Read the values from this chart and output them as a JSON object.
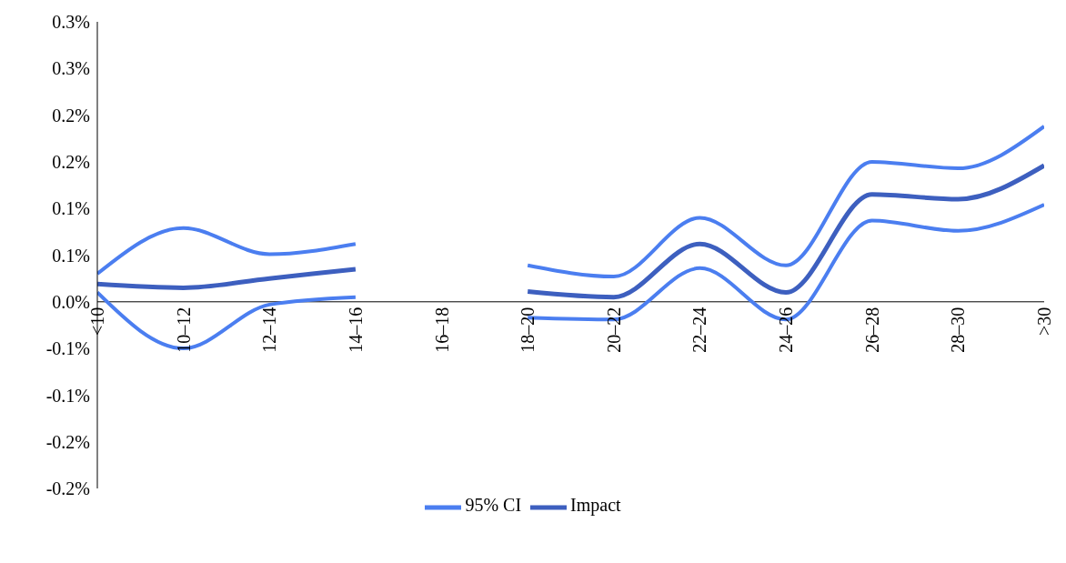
{
  "chart_data": {
    "type": "line",
    "categories": [
      "<10",
      "10–12",
      "12–14",
      "14–16",
      "16–18",
      "18–20",
      "20–22",
      "22–24",
      "24–26",
      "26–28",
      "28–30",
      ">30"
    ],
    "series": [
      {
        "name": "Impact",
        "color": "#3d5fbf",
        "values": [
          0.019,
          0.015,
          0.025,
          0.035,
          null,
          0.011,
          0.005,
          0.062,
          0.01,
          0.115,
          0.11,
          0.146
        ]
      },
      {
        "name": "95% CI",
        "color": "#4b7ef0",
        "values": [
          0.03,
          0.079,
          0.051,
          0.062,
          null,
          0.039,
          0.027,
          0.09,
          0.039,
          0.15,
          0.143,
          0.188
        ]
      },
      {
        "color": "#4b7ef0",
        "values": [
          0.01,
          -0.05,
          -0.003,
          0.005,
          null,
          -0.017,
          -0.019,
          0.036,
          -0.019,
          0.087,
          0.076,
          0.104
        ]
      }
    ],
    "ylim": [
      -0.2,
      0.3
    ],
    "yticks": [
      {
        "value": 0.3,
        "label": "0.3%"
      },
      {
        "value": 0.25,
        "label": "0.3%"
      },
      {
        "value": 0.2,
        "label": "0.2%"
      },
      {
        "value": 0.15,
        "label": "0.2%"
      },
      {
        "value": 0.1,
        "label": "0.1%"
      },
      {
        "value": 0.05,
        "label": "0.1%"
      },
      {
        "value": 0,
        "label": "0.0%"
      },
      {
        "value": -0.05,
        "label": "-0.1%"
      },
      {
        "value": -0.1,
        "label": "-0.1%"
      },
      {
        "value": -0.15,
        "label": "-0.2%"
      },
      {
        "value": -0.2,
        "label": "-0.2%"
      }
    ],
    "grid": false,
    "legend": "bottom",
    "marker": "none",
    "line_style": "solid"
  }
}
